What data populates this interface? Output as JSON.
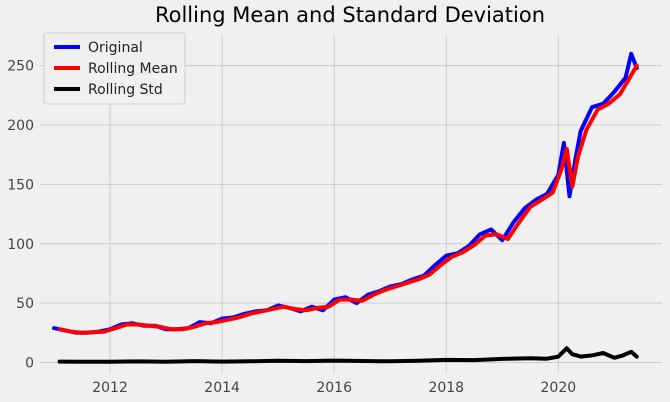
{
  "chart_data": {
    "type": "line",
    "title": "Rolling Mean and Standard Deviation",
    "xlabel": "",
    "ylabel": "",
    "xlim": [
      2010.75,
      2021.85
    ],
    "ylim": [
      -8,
      275
    ],
    "x_ticks": [
      2012,
      2014,
      2016,
      2018,
      2020
    ],
    "y_ticks": [
      0,
      50,
      100,
      150,
      200,
      250
    ],
    "grid": true,
    "legend": {
      "placement": "top-left"
    },
    "series": [
      {
        "name": "Original",
        "color": "#0000ff",
        "x": [
          2011.0,
          2011.2,
          2011.4,
          2011.6,
          2011.8,
          2012.0,
          2012.2,
          2012.4,
          2012.6,
          2012.8,
          2013.0,
          2013.2,
          2013.4,
          2013.6,
          2013.8,
          2014.0,
          2014.2,
          2014.4,
          2014.6,
          2014.8,
          2015.0,
          2015.2,
          2015.4,
          2015.6,
          2015.8,
          2016.0,
          2016.2,
          2016.4,
          2016.6,
          2016.8,
          2017.0,
          2017.2,
          2017.4,
          2017.6,
          2017.8,
          2018.0,
          2018.2,
          2018.4,
          2018.6,
          2018.8,
          2019.0,
          2019.2,
          2019.4,
          2019.6,
          2019.8,
          2020.0,
          2020.1,
          2020.2,
          2020.3,
          2020.4,
          2020.6,
          2020.8,
          2021.0,
          2021.2,
          2021.3,
          2021.4
        ],
        "y": [
          29,
          27,
          25,
          25,
          26,
          28,
          32,
          33,
          31,
          31,
          28,
          28,
          29,
          34,
          33,
          37,
          38,
          41,
          43,
          44,
          48,
          46,
          43,
          47,
          44,
          53,
          55,
          50,
          57,
          60,
          64,
          66,
          70,
          73,
          82,
          90,
          92,
          98,
          108,
          112,
          103,
          118,
          130,
          137,
          142,
          158,
          185,
          140,
          170,
          195,
          215,
          218,
          228,
          240,
          260,
          248
        ]
      },
      {
        "name": "Rolling Mean",
        "color": "#ff0000",
        "x": [
          2011.1,
          2011.3,
          2011.5,
          2011.7,
          2011.9,
          2012.1,
          2012.3,
          2012.5,
          2012.7,
          2012.9,
          2013.1,
          2013.3,
          2013.5,
          2013.7,
          2013.9,
          2014.1,
          2014.3,
          2014.5,
          2014.7,
          2014.9,
          2015.1,
          2015.3,
          2015.5,
          2015.7,
          2015.9,
          2016.1,
          2016.3,
          2016.5,
          2016.7,
          2016.9,
          2017.1,
          2017.3,
          2017.5,
          2017.7,
          2017.9,
          2018.1,
          2018.3,
          2018.5,
          2018.7,
          2018.9,
          2019.1,
          2019.3,
          2019.5,
          2019.7,
          2019.9,
          2020.05,
          2020.15,
          2020.25,
          2020.35,
          2020.5,
          2020.7,
          2020.9,
          2021.1,
          2021.3,
          2021.4
        ],
        "y": [
          28,
          26,
          25,
          25.5,
          26,
          29,
          32,
          32,
          31,
          30,
          28,
          28,
          30,
          33,
          34,
          36,
          38,
          41,
          43,
          45,
          47,
          45,
          44,
          46,
          47,
          53,
          53,
          52,
          57,
          61,
          64,
          67,
          70,
          74,
          82,
          89,
          93,
          99,
          107,
          108,
          104,
          118,
          131,
          137,
          143,
          162,
          180,
          148,
          173,
          196,
          213,
          218,
          226,
          242,
          250
        ]
      },
      {
        "name": "Rolling Std",
        "color": "#000000",
        "x": [
          2011.1,
          2011.5,
          2012.0,
          2012.5,
          2013.0,
          2013.5,
          2014.0,
          2014.5,
          2015.0,
          2015.5,
          2016.0,
          2016.5,
          2017.0,
          2017.5,
          2018.0,
          2018.5,
          2019.0,
          2019.5,
          2019.8,
          2020.0,
          2020.15,
          2020.25,
          2020.4,
          2020.6,
          2020.8,
          2021.0,
          2021.15,
          2021.3,
          2021.4
        ],
        "y": [
          0.8,
          0.6,
          0.7,
          0.9,
          0.6,
          1.2,
          0.8,
          1.0,
          1.5,
          1.2,
          1.6,
          1.3,
          1.0,
          1.4,
          2.2,
          2.0,
          3.0,
          3.5,
          3.2,
          5.0,
          12.0,
          7.0,
          5.0,
          6.0,
          8.0,
          4.0,
          6.0,
          9.0,
          5.0
        ]
      }
    ]
  }
}
